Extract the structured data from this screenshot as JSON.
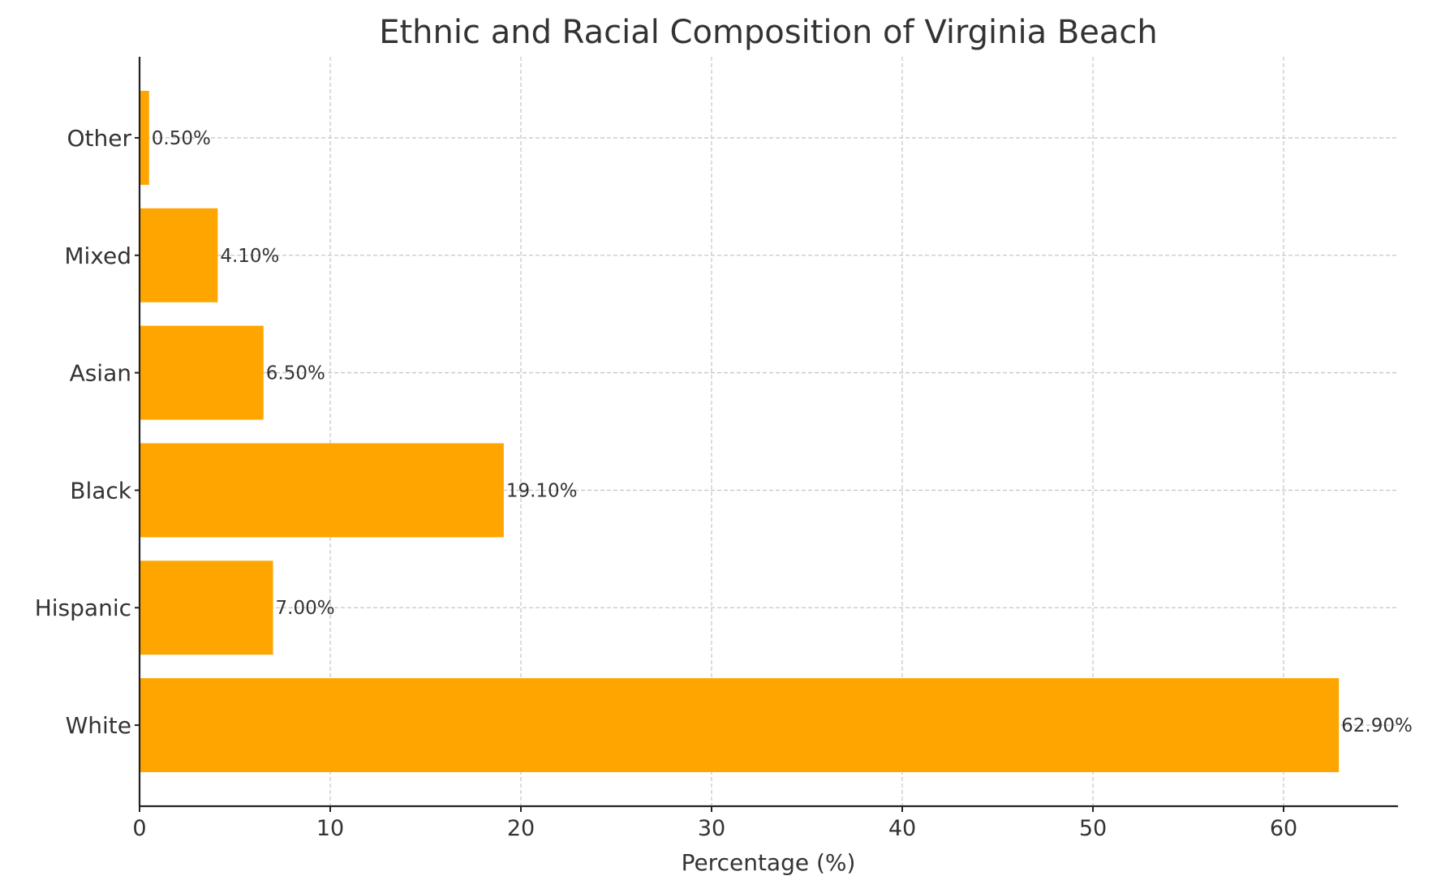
{
  "chart_data": {
    "type": "bar",
    "orientation": "horizontal",
    "title": "Ethnic and Racial Composition of Virginia Beach",
    "xlabel": "Percentage (%)",
    "ylabel": "",
    "categories": [
      "White",
      "Hispanic",
      "Black",
      "Asian",
      "Mixed",
      "Other"
    ],
    "values": [
      62.9,
      7.0,
      19.1,
      6.5,
      4.1,
      0.5
    ],
    "data_labels": [
      "62.90%",
      "7.00%",
      "19.10%",
      "6.50%",
      "4.10%",
      "0.50%"
    ],
    "xlim": [
      0,
      66
    ],
    "xticks": [
      0,
      10,
      20,
      30,
      40,
      50,
      60
    ],
    "grid": true,
    "bar_color": "#FFA500"
  }
}
